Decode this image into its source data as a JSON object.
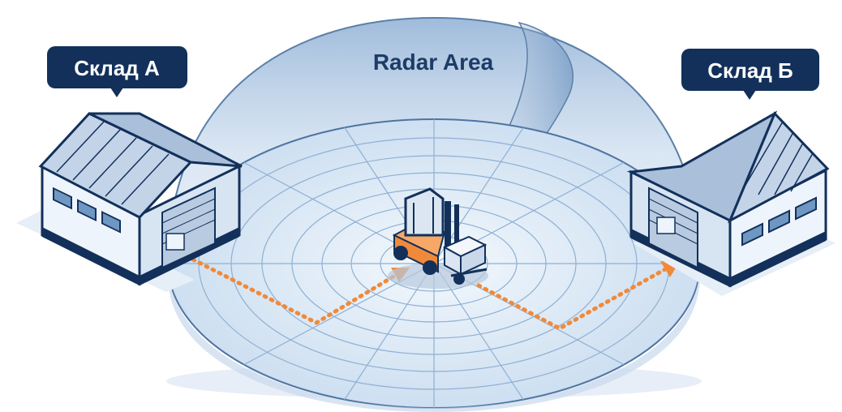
{
  "radar": {
    "label": "Radar Area"
  },
  "warehouses": [
    {
      "id": "a",
      "label": "Склад А"
    },
    {
      "id": "b",
      "label": "Склад Б"
    }
  ],
  "colors": {
    "navy": "#12305a",
    "dome": "#6f97c4",
    "floor": "#dbe8f5",
    "route": "#f08a3a",
    "forklift": "#f08a3a",
    "building_wall": "#eef4fb",
    "building_roof": "#b9cbe0"
  },
  "icons": {
    "forklift": "forklift-icon",
    "warehouse_a": "warehouse-a-icon",
    "warehouse_b": "warehouse-b-icon"
  }
}
